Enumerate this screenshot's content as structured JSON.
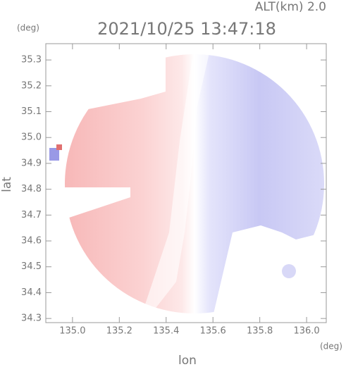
{
  "chart_data": {
    "type": "radar-map",
    "title": "2021/10/25 13:47:18",
    "subtitle": "ALT(km) 2.0",
    "x_label": "lon",
    "y_label": "lat",
    "x_unit": "(deg)",
    "y_unit": "(deg)",
    "xlim": [
      134.886,
      136.084
    ],
    "ylim": [
      34.284,
      35.363
    ],
    "xticks": [
      {
        "value": 135.0,
        "label": "135.0"
      },
      135.2,
      135.4,
      135.6,
      135.8,
      {
        "value": 136.0,
        "label": "136.0"
      }
    ],
    "yticks": [
      34.3,
      34.4,
      34.5,
      34.6,
      34.7,
      34.8,
      34.9,
      {
        "value": 35.0,
        "label": "35.0"
      },
      35.1,
      35.2,
      35.3
    ]
  }
}
